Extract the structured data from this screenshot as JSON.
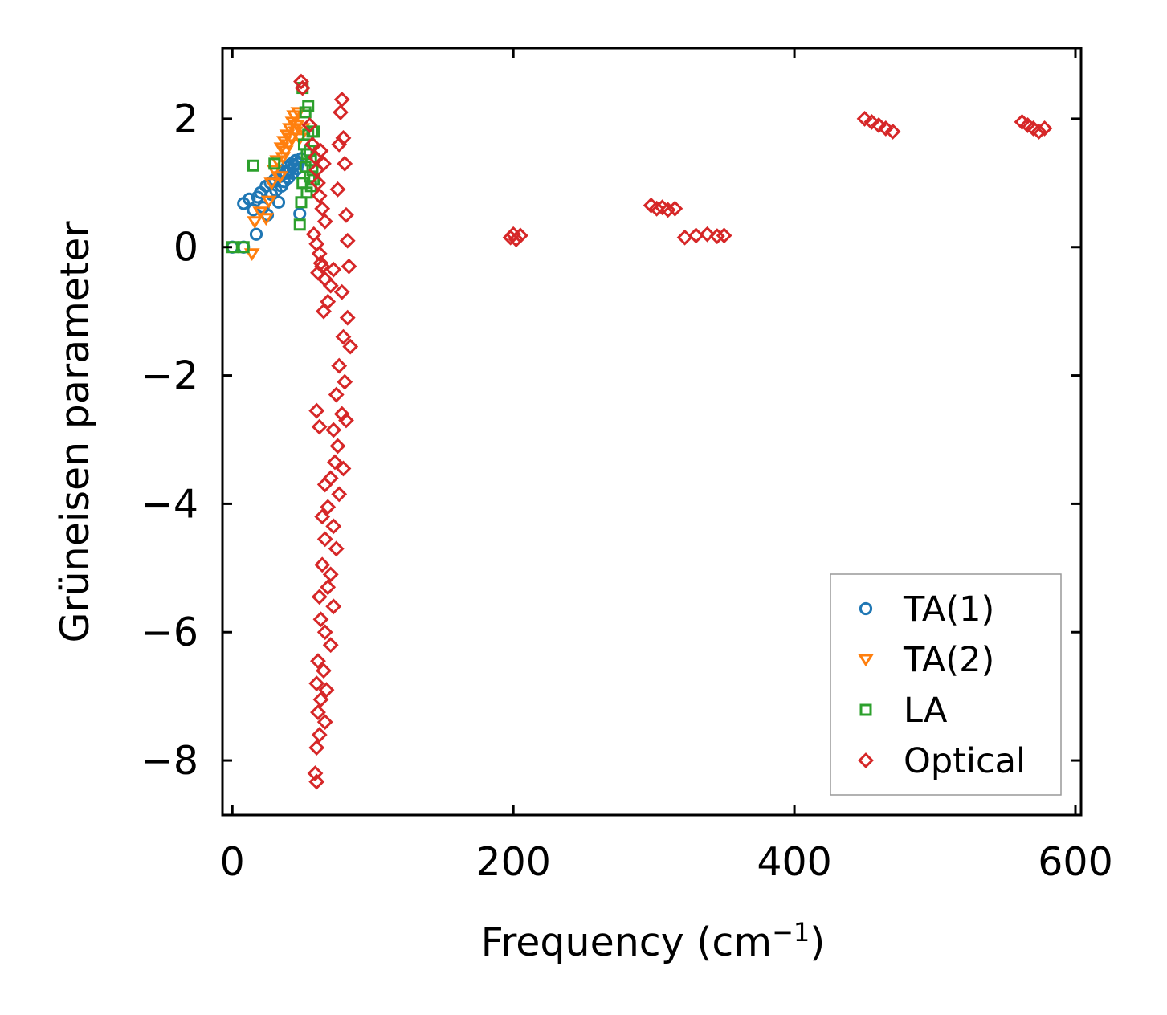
{
  "chart_data": {
    "type": "scatter",
    "title": "",
    "xlabel": "Frequency (cm",
    "xlabel_sup": "−1",
    "xlabel_close": ")",
    "ylabel": "Grüneisen parameter",
    "xlim": [
      -7,
      604
    ],
    "ylim": [
      -8.85,
      3.1
    ],
    "xticks": [
      0,
      200,
      400,
      600
    ],
    "xtick_labels": [
      "0",
      "200",
      "400",
      "600"
    ],
    "yticks": [
      2,
      0,
      -2,
      -4,
      -6,
      -8
    ],
    "ytick_labels": [
      "2",
      "0",
      "−2",
      "−4",
      "−6",
      "−8"
    ],
    "grid": false,
    "legend_position": "lower-right",
    "series": [
      {
        "name": "TA(1)",
        "color": "#1f77b4",
        "marker": "circle",
        "points": [
          [
            0,
            0
          ],
          [
            8,
            0
          ],
          [
            8,
            0.68
          ],
          [
            12,
            0.75
          ],
          [
            15,
            0.58
          ],
          [
            17,
            0.2
          ],
          [
            18,
            0.78
          ],
          [
            20,
            0.85
          ],
          [
            22,
            0.62
          ],
          [
            24,
            0.95
          ],
          [
            25,
            0.5
          ],
          [
            27,
            1.0
          ],
          [
            28,
            0.82
          ],
          [
            30,
            1.05
          ],
          [
            31,
            0.88
          ],
          [
            33,
            0.7
          ],
          [
            34,
            1.1
          ],
          [
            35,
            0.95
          ],
          [
            36,
            1.18
          ],
          [
            37,
            1.02
          ],
          [
            38,
            1.15
          ],
          [
            39,
            1.25
          ],
          [
            40,
            1.08
          ],
          [
            41,
            1.2
          ],
          [
            42,
            1.3
          ],
          [
            43,
            1.15
          ],
          [
            44,
            1.28
          ],
          [
            45,
            1.35
          ],
          [
            46,
            1.22
          ],
          [
            47,
            1.3
          ],
          [
            48,
            0.52
          ],
          [
            49,
            1.38
          ]
        ]
      },
      {
        "name": "TA(2)",
        "color": "#ff7f0e",
        "marker": "triangle-down",
        "points": [
          [
            14,
            -0.1
          ],
          [
            16,
            0.4
          ],
          [
            20,
            0.55
          ],
          [
            24,
            0.45
          ],
          [
            26,
            0.72
          ],
          [
            28,
            1.0
          ],
          [
            30,
            1.2
          ],
          [
            32,
            1.35
          ],
          [
            34,
            1.1
          ],
          [
            35,
            1.55
          ],
          [
            36,
            1.4
          ],
          [
            37,
            1.65
          ],
          [
            38,
            1.5
          ],
          [
            39,
            1.75
          ],
          [
            40,
            1.6
          ],
          [
            41,
            1.85
          ],
          [
            42,
            1.7
          ],
          [
            43,
            1.95
          ],
          [
            44,
            2.05
          ],
          [
            45,
            1.8
          ],
          [
            46,
            1.9
          ],
          [
            47,
            2.1
          ],
          [
            48,
            1.7
          ],
          [
            50,
            1.85
          ]
        ]
      },
      {
        "name": "LA",
        "color": "#2ca02c",
        "marker": "square",
        "points": [
          [
            0,
            0
          ],
          [
            8,
            0
          ],
          [
            15,
            1.27
          ],
          [
            30,
            1.3
          ],
          [
            48,
            0.35
          ],
          [
            49,
            0.7
          ],
          [
            50,
            2.48
          ],
          [
            50,
            1.0
          ],
          [
            51,
            1.6
          ],
          [
            52,
            1.25
          ],
          [
            52,
            2.1
          ],
          [
            53,
            0.85
          ],
          [
            53,
            1.45
          ],
          [
            54,
            2.2
          ],
          [
            54,
            1.75
          ],
          [
            55,
            1.1
          ],
          [
            55,
            1.5
          ],
          [
            56,
            1.35
          ],
          [
            56,
            0.95
          ],
          [
            57,
            1.2
          ],
          [
            57,
            1.8
          ],
          [
            58,
            1.8
          ],
          [
            58,
            1.05
          ]
        ]
      },
      {
        "name": "Optical",
        "color": "#d62728",
        "marker": "diamond",
        "points": [
          [
            49,
            2.58
          ],
          [
            50,
            2.48
          ],
          [
            55,
            1.9
          ],
          [
            57,
            1.6
          ],
          [
            59,
            1.4
          ],
          [
            60,
            1.2
          ],
          [
            61,
            1.0
          ],
          [
            62,
            0.8
          ],
          [
            63,
            1.5
          ],
          [
            64,
            0.6
          ],
          [
            65,
            1.3
          ],
          [
            66,
            0.4
          ],
          [
            58,
            0.2
          ],
          [
            60,
            0.05
          ],
          [
            62,
            -0.1
          ],
          [
            63,
            -0.25
          ],
          [
            61,
            -0.4
          ],
          [
            64,
            -0.3
          ],
          [
            66,
            -0.5
          ],
          [
            70,
            -0.6
          ],
          [
            72,
            -0.35
          ],
          [
            68,
            -0.85
          ],
          [
            65,
            -1.0
          ],
          [
            75,
            0.9
          ],
          [
            76,
            1.6
          ],
          [
            77,
            2.1
          ],
          [
            78,
            2.3
          ],
          [
            79,
            1.7
          ],
          [
            80,
            1.3
          ],
          [
            81,
            0.5
          ],
          [
            82,
            0.1
          ],
          [
            83,
            -0.3
          ],
          [
            78,
            -0.7
          ],
          [
            82,
            -1.1
          ],
          [
            79,
            -1.4
          ],
          [
            84,
            -1.55
          ],
          [
            76,
            -1.85
          ],
          [
            80,
            -2.1
          ],
          [
            74,
            -2.3
          ],
          [
            78,
            -2.6
          ],
          [
            72,
            -2.85
          ],
          [
            81,
            -2.7
          ],
          [
            60,
            -2.55
          ],
          [
            62,
            -2.8
          ],
          [
            75,
            -3.1
          ],
          [
            73,
            -3.35
          ],
          [
            79,
            -3.45
          ],
          [
            70,
            -3.6
          ],
          [
            66,
            -3.7
          ],
          [
            76,
            -3.85
          ],
          [
            68,
            -4.05
          ],
          [
            64,
            -4.2
          ],
          [
            72,
            -4.35
          ],
          [
            66,
            -4.55
          ],
          [
            74,
            -4.7
          ],
          [
            64,
            -4.95
          ],
          [
            70,
            -5.1
          ],
          [
            68,
            -5.3
          ],
          [
            62,
            -5.45
          ],
          [
            72,
            -5.6
          ],
          [
            63,
            -5.8
          ],
          [
            66,
            -6.0
          ],
          [
            70,
            -6.2
          ],
          [
            61,
            -6.45
          ],
          [
            65,
            -6.6
          ],
          [
            60,
            -6.8
          ],
          [
            67,
            -6.9
          ],
          [
            63,
            -7.05
          ],
          [
            61,
            -7.25
          ],
          [
            66,
            -7.4
          ],
          [
            62,
            -7.6
          ],
          [
            60,
            -7.8
          ],
          [
            59,
            -8.2
          ],
          [
            60,
            -8.33
          ],
          [
            198,
            0.15
          ],
          [
            200,
            0.2
          ],
          [
            202,
            0.12
          ],
          [
            205,
            0.18
          ],
          [
            298,
            0.65
          ],
          [
            302,
            0.6
          ],
          [
            306,
            0.62
          ],
          [
            310,
            0.58
          ],
          [
            315,
            0.6
          ],
          [
            322,
            0.15
          ],
          [
            330,
            0.18
          ],
          [
            338,
            0.2
          ],
          [
            345,
            0.17
          ],
          [
            350,
            0.18
          ],
          [
            450,
            2.0
          ],
          [
            455,
            1.95
          ],
          [
            460,
            1.9
          ],
          [
            465,
            1.85
          ],
          [
            470,
            1.8
          ],
          [
            562,
            1.95
          ],
          [
            566,
            1.9
          ],
          [
            570,
            1.85
          ],
          [
            574,
            1.8
          ],
          [
            578,
            1.85
          ]
        ]
      }
    ]
  }
}
